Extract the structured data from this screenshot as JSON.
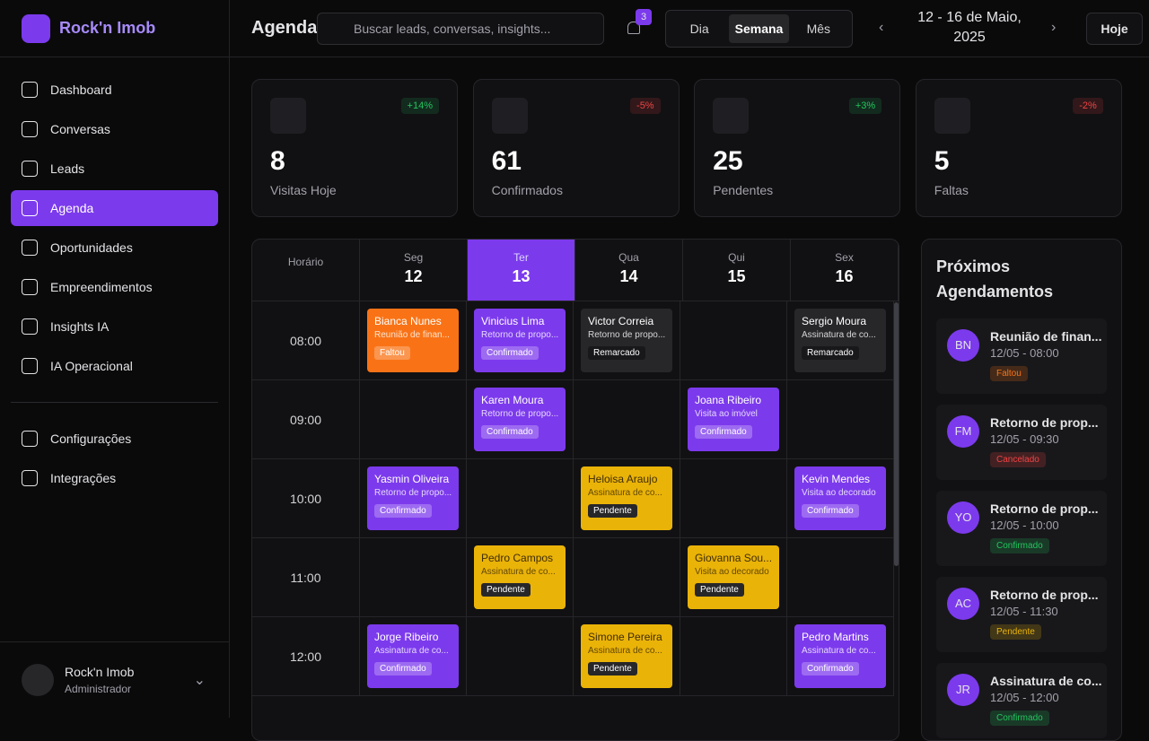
{
  "brand": {
    "name": "Rock'n Imob"
  },
  "nav": {
    "items": [
      "Dashboard",
      "Conversas",
      "Leads",
      "Agenda",
      "Oportunidades",
      "Empreendimentos",
      "Insights IA",
      "IA Operacional"
    ],
    "active": 3,
    "secondary": [
      "Configurações",
      "Integrações"
    ]
  },
  "user": {
    "name": "Rock'n Imob",
    "role": "Administrador"
  },
  "header": {
    "title": "Agenda",
    "search_placeholder": "Buscar leads, conversas, insights...",
    "notifications": 3,
    "views": [
      "Dia",
      "Semana",
      "Mês"
    ],
    "active_view": 1,
    "date_range": "12 - 16 de Maio, 2025",
    "today": "Hoje"
  },
  "stats": [
    {
      "value": 8,
      "label": "Visitas Hoje",
      "change": "+14%",
      "color": "#22c55e"
    },
    {
      "value": 61,
      "label": "Confirmados",
      "change": "-5%",
      "color": "#ef4444"
    },
    {
      "value": 25,
      "label": "Pendentes",
      "change": "+3%",
      "color": "#22c55e"
    },
    {
      "value": 5,
      "label": "Faltas",
      "change": "-2%",
      "color": "#ef4444"
    }
  ],
  "calendar": {
    "time_header": "Horário",
    "active_day": 1,
    "days": [
      {
        "weekday": "Seg",
        "day": 12
      },
      {
        "weekday": "Ter",
        "day": 13
      },
      {
        "weekday": "Qua",
        "day": 14
      },
      {
        "weekday": "Qui",
        "day": 15
      },
      {
        "weekday": "Sex",
        "day": 16
      }
    ],
    "rows": [
      {
        "time": "08:00",
        "events": [
          {
            "name": "Bianca Nunes",
            "desc": "Reunião de finan...",
            "status": "Faltou",
            "color": "#f97316"
          },
          {
            "name": "Vinicius Lima",
            "desc": "Retorno de propo...",
            "status": "Confirmado",
            "color": "#7c3aed"
          },
          {
            "name": "Victor Correia",
            "desc": "Retorno de propo...",
            "status": "Remarcado",
            "color": "#27272a"
          },
          null,
          {
            "name": "Sergio Moura",
            "desc": "Assinatura de co...",
            "status": "Remarcado",
            "color": "#27272a"
          }
        ]
      },
      {
        "time": "09:00",
        "events": [
          null,
          {
            "name": "Karen Moura",
            "desc": "Retorno de propo...",
            "status": "Confirmado",
            "color": "#7c3aed"
          },
          null,
          {
            "name": "Joana Ribeiro",
            "desc": "Visita ao imóvel",
            "status": "Confirmado",
            "color": "#7c3aed"
          },
          null
        ]
      },
      {
        "time": "10:00",
        "events": [
          {
            "name": "Yasmin Oliveira",
            "desc": "Retorno de propo...",
            "status": "Confirmado",
            "color": "#7c3aed"
          },
          null,
          {
            "name": "Heloisa Araujo",
            "desc": "Assinatura de co...",
            "status": "Pendente",
            "color": "#eab308"
          },
          null,
          {
            "name": "Kevin Mendes",
            "desc": "Visita ao decorado",
            "status": "Confirmado",
            "color": "#7c3aed"
          }
        ]
      },
      {
        "time": "11:00",
        "events": [
          null,
          {
            "name": "Pedro Campos",
            "desc": "Assinatura de co...",
            "status": "Pendente",
            "color": "#eab308"
          },
          null,
          {
            "name": "Giovanna Sou...",
            "desc": "Visita ao decorado",
            "status": "Pendente",
            "color": "#eab308"
          },
          null
        ]
      },
      {
        "time": "12:00",
        "events": [
          {
            "name": "Jorge Ribeiro",
            "desc": "Assinatura de co...",
            "status": "Confirmado",
            "color": "#7c3aed"
          },
          null,
          {
            "name": "Simone Pereira",
            "desc": "Assinatura de co...",
            "status": "Pendente",
            "color": "#eab308"
          },
          null,
          {
            "name": "Pedro Martins",
            "desc": "Assinatura de co...",
            "status": "Confirmado",
            "color": "#7c3aed"
          }
        ]
      }
    ]
  },
  "upcoming": {
    "title": "Próximos Agendamentos",
    "items": [
      {
        "initials": "BN",
        "title": "Reunião de finan...",
        "time": "12/05 - 08:00",
        "status": "Faltou",
        "status_color": "#f97316"
      },
      {
        "initials": "FM",
        "title": "Retorno de prop...",
        "time": "12/05 - 09:30",
        "status": "Cancelado",
        "status_color": "#ef4444"
      },
      {
        "initials": "YO",
        "title": "Retorno de prop...",
        "time": "12/05 - 10:00",
        "status": "Confirmado",
        "status_color": "#22c55e"
      },
      {
        "initials": "AC",
        "title": "Retorno de prop...",
        "time": "12/05 - 11:30",
        "status": "Pendente",
        "status_color": "#eab308"
      },
      {
        "initials": "JR",
        "title": "Assinatura de co...",
        "time": "12/05 - 12:00",
        "status": "Confirmado",
        "status_color": "#22c55e"
      }
    ]
  }
}
